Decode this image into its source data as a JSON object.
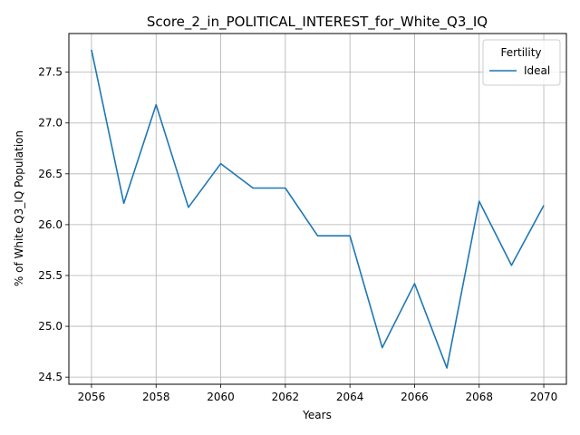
{
  "chart_data": {
    "type": "line",
    "title": "Score_2_in_POLITICAL_INTEREST_for_White_Q3_IQ",
    "xlabel": "Years",
    "ylabel": "% of White Q3_IQ Population",
    "xlim": [
      2055.3,
      2070.7
    ],
    "ylim": [
      24.43,
      27.88
    ],
    "xticks": [
      2056,
      2058,
      2060,
      2062,
      2064,
      2066,
      2068,
      2070
    ],
    "xtick_labels": [
      "2056",
      "2058",
      "2060",
      "2062",
      "2064",
      "2066",
      "2068",
      "2070"
    ],
    "yticks": [
      24.5,
      25.0,
      25.5,
      26.0,
      26.5,
      27.0,
      27.5
    ],
    "ytick_labels": [
      "24.5",
      "25.0",
      "25.5",
      "26.0",
      "26.5",
      "27.0",
      "27.5"
    ],
    "grid": true,
    "legend": {
      "title": "Fertility",
      "position": "top-right"
    },
    "x": [
      2056,
      2057,
      2058,
      2059,
      2060,
      2061,
      2062,
      2063,
      2064,
      2065,
      2066,
      2067,
      2068,
      2069,
      2070
    ],
    "series": [
      {
        "name": "Ideal",
        "color": "#1f77b4",
        "values": [
          27.72,
          26.21,
          27.18,
          26.17,
          26.6,
          26.36,
          26.36,
          25.89,
          25.89,
          24.79,
          25.42,
          24.59,
          26.23,
          25.6,
          26.19
        ]
      }
    ]
  }
}
